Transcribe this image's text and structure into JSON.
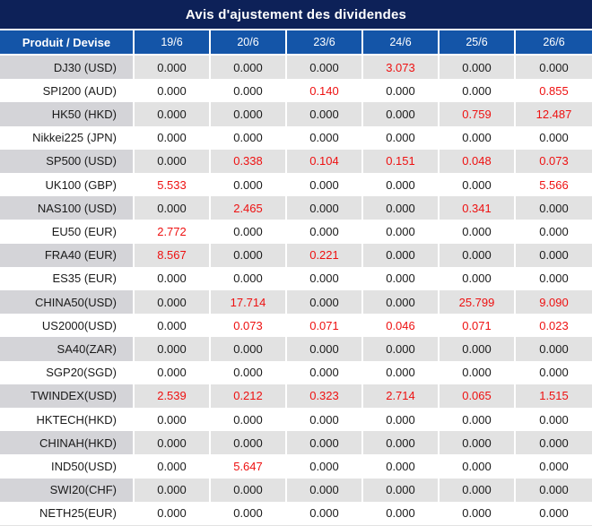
{
  "title": "Avis d'ajustement des dividendes",
  "table": {
    "columns": [
      "Produit / Devise",
      "19/6",
      "20/6",
      "23/6",
      "24/6",
      "25/6",
      "26/6"
    ],
    "rows": [
      {
        "product": "DJ30 (USD)",
        "values": [
          "0.000",
          "0.000",
          "0.000",
          "3.073",
          "0.000",
          "0.000"
        ]
      },
      {
        "product": "SPI200 (AUD)",
        "values": [
          "0.000",
          "0.000",
          "0.140",
          "0.000",
          "0.000",
          "0.855"
        ]
      },
      {
        "product": "HK50 (HKD)",
        "values": [
          "0.000",
          "0.000",
          "0.000",
          "0.000",
          "0.759",
          "12.487"
        ]
      },
      {
        "product": "Nikkei225 (JPN)",
        "values": [
          "0.000",
          "0.000",
          "0.000",
          "0.000",
          "0.000",
          "0.000"
        ]
      },
      {
        "product": "SP500 (USD)",
        "values": [
          "0.000",
          "0.338",
          "0.104",
          "0.151",
          "0.048",
          "0.073"
        ]
      },
      {
        "product": "UK100 (GBP)",
        "values": [
          "5.533",
          "0.000",
          "0.000",
          "0.000",
          "0.000",
          "5.566"
        ]
      },
      {
        "product": "NAS100 (USD)",
        "values": [
          "0.000",
          "2.465",
          "0.000",
          "0.000",
          "0.341",
          "0.000"
        ]
      },
      {
        "product": "EU50 (EUR)",
        "values": [
          "2.772",
          "0.000",
          "0.000",
          "0.000",
          "0.000",
          "0.000"
        ]
      },
      {
        "product": "FRA40 (EUR)",
        "values": [
          "8.567",
          "0.000",
          "0.221",
          "0.000",
          "0.000",
          "0.000"
        ]
      },
      {
        "product": "ES35 (EUR)",
        "values": [
          "0.000",
          "0.000",
          "0.000",
          "0.000",
          "0.000",
          "0.000"
        ]
      },
      {
        "product": "CHINA50(USD)",
        "values": [
          "0.000",
          "17.714",
          "0.000",
          "0.000",
          "25.799",
          "9.090"
        ]
      },
      {
        "product": "US2000(USD)",
        "values": [
          "0.000",
          "0.073",
          "0.071",
          "0.046",
          "0.071",
          "0.023"
        ]
      },
      {
        "product": "SA40(ZAR)",
        "values": [
          "0.000",
          "0.000",
          "0.000",
          "0.000",
          "0.000",
          "0.000"
        ]
      },
      {
        "product": "SGP20(SGD)",
        "values": [
          "0.000",
          "0.000",
          "0.000",
          "0.000",
          "0.000",
          "0.000"
        ]
      },
      {
        "product": "TWINDEX(USD)",
        "values": [
          "2.539",
          "0.212",
          "0.323",
          "2.714",
          "0.065",
          "1.515"
        ]
      },
      {
        "product": "HKTECH(HKD)",
        "values": [
          "0.000",
          "0.000",
          "0.000",
          "0.000",
          "0.000",
          "0.000"
        ]
      },
      {
        "product": "CHINAH(HKD)",
        "values": [
          "0.000",
          "0.000",
          "0.000",
          "0.000",
          "0.000",
          "0.000"
        ]
      },
      {
        "product": "IND50(USD)",
        "values": [
          "0.000",
          "5.647",
          "0.000",
          "0.000",
          "0.000",
          "0.000"
        ]
      },
      {
        "product": "SWI20(CHF)",
        "values": [
          "0.000",
          "0.000",
          "0.000",
          "0.000",
          "0.000",
          "0.000"
        ]
      },
      {
        "product": "NETH25(EUR)",
        "values": [
          "0.000",
          "0.000",
          "0.000",
          "0.000",
          "0.000",
          "0.000"
        ]
      }
    ]
  },
  "colors": {
    "title_bg": "#0d2158",
    "header_bg": "#1455a8",
    "header_text": "#ffffff",
    "stripe_label_bg": "#d4d4d8",
    "stripe_cell_bg": "#e2e2e2",
    "value_zero": "#1a1a1a",
    "value_nonzero": "#ee1111",
    "separator": "#ffffff",
    "bottom_border": "#e3e3e3"
  },
  "chart_data": {
    "type": "table",
    "title": "Avis d'ajustement des dividendes",
    "columns": [
      "Produit / Devise",
      "19/6",
      "20/6",
      "23/6",
      "24/6",
      "25/6",
      "26/6"
    ],
    "rows": [
      [
        "DJ30 (USD)",
        0.0,
        0.0,
        0.0,
        3.073,
        0.0,
        0.0
      ],
      [
        "SPI200 (AUD)",
        0.0,
        0.0,
        0.14,
        0.0,
        0.0,
        0.855
      ],
      [
        "HK50 (HKD)",
        0.0,
        0.0,
        0.0,
        0.0,
        0.759,
        12.487
      ],
      [
        "Nikkei225 (JPN)",
        0.0,
        0.0,
        0.0,
        0.0,
        0.0,
        0.0
      ],
      [
        "SP500 (USD)",
        0.0,
        0.338,
        0.104,
        0.151,
        0.048,
        0.073
      ],
      [
        "UK100 (GBP)",
        5.533,
        0.0,
        0.0,
        0.0,
        0.0,
        5.566
      ],
      [
        "NAS100 (USD)",
        0.0,
        2.465,
        0.0,
        0.0,
        0.341,
        0.0
      ],
      [
        "EU50 (EUR)",
        2.772,
        0.0,
        0.0,
        0.0,
        0.0,
        0.0
      ],
      [
        "FRA40 (EUR)",
        8.567,
        0.0,
        0.221,
        0.0,
        0.0,
        0.0
      ],
      [
        "ES35 (EUR)",
        0.0,
        0.0,
        0.0,
        0.0,
        0.0,
        0.0
      ],
      [
        "CHINA50(USD)",
        0.0,
        17.714,
        0.0,
        0.0,
        25.799,
        9.09
      ],
      [
        "US2000(USD)",
        0.0,
        0.073,
        0.071,
        0.046,
        0.071,
        0.023
      ],
      [
        "SA40(ZAR)",
        0.0,
        0.0,
        0.0,
        0.0,
        0.0,
        0.0
      ],
      [
        "SGP20(SGD)",
        0.0,
        0.0,
        0.0,
        0.0,
        0.0,
        0.0
      ],
      [
        "TWINDEX(USD)",
        2.539,
        0.212,
        0.323,
        2.714,
        0.065,
        1.515
      ],
      [
        "HKTECH(HKD)",
        0.0,
        0.0,
        0.0,
        0.0,
        0.0,
        0.0
      ],
      [
        "CHINAH(HKD)",
        0.0,
        0.0,
        0.0,
        0.0,
        0.0,
        0.0
      ],
      [
        "IND50(USD)",
        0.0,
        5.647,
        0.0,
        0.0,
        0.0,
        0.0
      ],
      [
        "SWI20(CHF)",
        0.0,
        0.0,
        0.0,
        0.0,
        0.0,
        0.0
      ],
      [
        "NETH25(EUR)",
        0.0,
        0.0,
        0.0,
        0.0,
        0.0,
        0.0
      ]
    ],
    "notes": "values of 0.000 rendered in black, non-zero values rendered in red; rows striped gray/white"
  }
}
